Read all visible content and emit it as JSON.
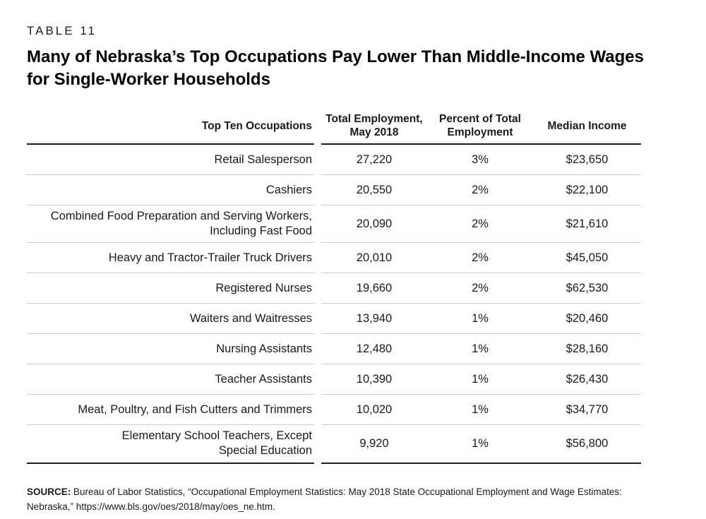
{
  "header": {
    "table_label": "TABLE 11",
    "title_lines": [
      "Many of Nebraska’s Top Occupations Pay Lower Than Middle-Income Wages",
      "for Single-Worker Households"
    ]
  },
  "table": {
    "columns": [
      "Top Ten Occupations",
      "Total Employment,\nMay 2018",
      "Percent of Total\nEmployment",
      "Median Income"
    ],
    "rows": [
      {
        "occupation": "Retail Salesperson",
        "employment": "27,220",
        "percent": "3%",
        "income": "$23,650"
      },
      {
        "occupation": "Cashiers",
        "employment": "20,550",
        "percent": "2%",
        "income": "$22,100"
      },
      {
        "occupation": "Combined Food Preparation and Serving Workers,\nIncluding Fast Food",
        "employment": "20,090",
        "percent": "2%",
        "income": "$21,610"
      },
      {
        "occupation": "Heavy and Tractor-Trailer Truck Drivers",
        "employment": "20,010",
        "percent": "2%",
        "income": "$45,050"
      },
      {
        "occupation": "Registered Nurses",
        "employment": "19,660",
        "percent": "2%",
        "income": "$62,530"
      },
      {
        "occupation": "Waiters and Waitresses",
        "employment": "13,940",
        "percent": "1%",
        "income": "$20,460"
      },
      {
        "occupation": "Nursing Assistants",
        "employment": "12,480",
        "percent": "1%",
        "income": "$28,160"
      },
      {
        "occupation": "Teacher Assistants",
        "employment": "10,390",
        "percent": "1%",
        "income": "$26,430"
      },
      {
        "occupation": "Meat, Poultry, and Fish Cutters and Trimmers",
        "employment": "10,020",
        "percent": "1%",
        "income": "$34,770"
      },
      {
        "occupation": "Elementary School Teachers, Except\nSpecial Education",
        "employment": "9,920",
        "percent": "1%",
        "income": "$56,800"
      }
    ],
    "colors": {
      "text": "#1a1a1a",
      "heavy_rule": "#1f1f1f",
      "light_rule": "#cbcbcb"
    }
  },
  "source": {
    "label": "SOURCE:",
    "line1_rest": "Bureau of Labor Statistics, “Occupational Employment Statistics: May 2018 State Occupational Employment and Wage Estimates:",
    "line2": "Nebraska,” https://www.bls.gov/oes/2018/may/oes_ne.htm."
  },
  "chart_data": {
    "type": "table",
    "title": "Many of Nebraska’s Top Occupations Pay Lower Than Middle-Income Wages for Single-Worker Households",
    "columns": [
      "Top Ten Occupations",
      "Total Employment, May 2018",
      "Percent of Total Employment",
      "Median Income"
    ],
    "rows": [
      [
        "Retail Salesperson",
        27220,
        "3%",
        23650
      ],
      [
        "Cashiers",
        20550,
        "2%",
        22100
      ],
      [
        "Combined Food Preparation and Serving Workers, Including Fast Food",
        20090,
        "2%",
        21610
      ],
      [
        "Heavy and Tractor-Trailer Truck Drivers",
        20010,
        "2%",
        45050
      ],
      [
        "Registered Nurses",
        19660,
        "2%",
        62530
      ],
      [
        "Waiters and Waitresses",
        13940,
        "1%",
        20460
      ],
      [
        "Nursing Assistants",
        12480,
        "1%",
        28160
      ],
      [
        "Teacher Assistants",
        10390,
        "1%",
        26430
      ],
      [
        "Meat, Poultry, and Fish Cutters and Trimmers",
        10020,
        "1%",
        34770
      ],
      [
        "Elementary School Teachers, Except Special Education",
        9920,
        "1%",
        56800
      ]
    ]
  }
}
